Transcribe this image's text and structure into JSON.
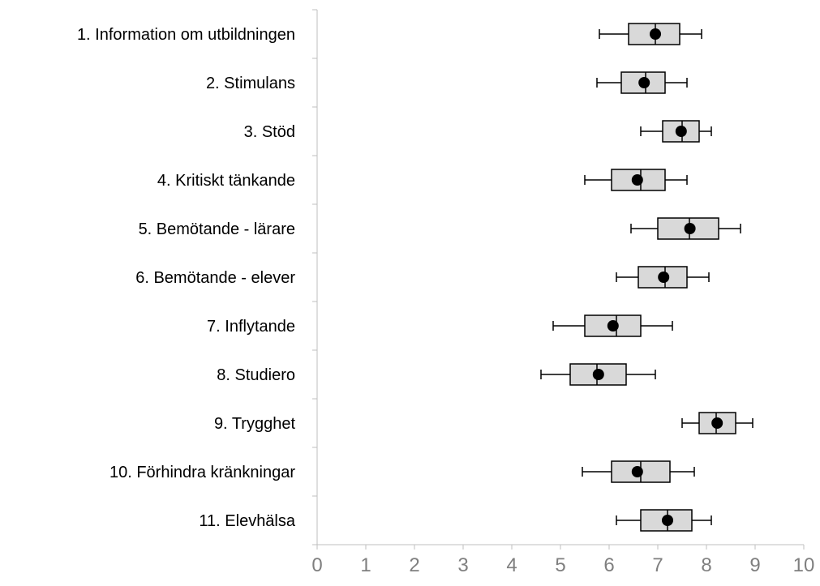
{
  "chart_data": {
    "type": "boxplot",
    "orientation": "horizontal",
    "title": "",
    "xlabel": "",
    "ylabel": "",
    "xlim": [
      0,
      10
    ],
    "x_ticks": [
      "0",
      "1",
      "2",
      "3",
      "4",
      "5",
      "6",
      "7",
      "8",
      "9",
      "10"
    ],
    "grid": false,
    "legend": "none",
    "colors": {
      "box_fill": "#d9d9d9",
      "box_stroke": "#000000",
      "marker": "#000000",
      "axis": "#bfbfbf",
      "tick_text": "#7f7f7f"
    },
    "categories": [
      {
        "label": "1. Information om utbildningen",
        "whisker_low": 5.8,
        "q1": 6.4,
        "median": 6.95,
        "q3": 7.45,
        "whisker_high": 7.9,
        "mean": 6.95
      },
      {
        "label": "2. Stimulans",
        "whisker_low": 5.75,
        "q1": 6.25,
        "median": 6.75,
        "q3": 7.15,
        "whisker_high": 7.6,
        "mean": 6.72
      },
      {
        "label": "3. Stöd",
        "whisker_low": 6.65,
        "q1": 7.1,
        "median": 7.5,
        "q3": 7.85,
        "whisker_high": 8.1,
        "mean": 7.48
      },
      {
        "label": "4. Kritiskt tänkande",
        "whisker_low": 5.5,
        "q1": 6.05,
        "median": 6.65,
        "q3": 7.15,
        "whisker_high": 7.6,
        "mean": 6.58
      },
      {
        "label": "5. Bemötande - lärare",
        "whisker_low": 6.45,
        "q1": 7.0,
        "median": 7.65,
        "q3": 8.25,
        "whisker_high": 8.7,
        "mean": 7.66
      },
      {
        "label": "6. Bemötande - elever",
        "whisker_low": 6.15,
        "q1": 6.6,
        "median": 7.15,
        "q3": 7.6,
        "whisker_high": 8.05,
        "mean": 7.12
      },
      {
        "label": "7. Inflytande",
        "whisker_low": 4.85,
        "q1": 5.5,
        "median": 6.15,
        "q3": 6.65,
        "whisker_high": 7.3,
        "mean": 6.08
      },
      {
        "label": "8. Studiero",
        "whisker_low": 4.6,
        "q1": 5.2,
        "median": 5.75,
        "q3": 6.35,
        "whisker_high": 6.95,
        "mean": 5.78
      },
      {
        "label": "9. Trygghet",
        "whisker_low": 7.5,
        "q1": 7.85,
        "median": 8.2,
        "q3": 8.6,
        "whisker_high": 8.95,
        "mean": 8.22
      },
      {
        "label": "10. Förhindra kränkningar",
        "whisker_low": 5.45,
        "q1": 6.05,
        "median": 6.65,
        "q3": 7.25,
        "whisker_high": 7.75,
        "mean": 6.58
      },
      {
        "label": "11. Elevhälsa",
        "whisker_low": 6.15,
        "q1": 6.65,
        "median": 7.2,
        "q3": 7.7,
        "whisker_high": 8.1,
        "mean": 7.2
      }
    ]
  }
}
